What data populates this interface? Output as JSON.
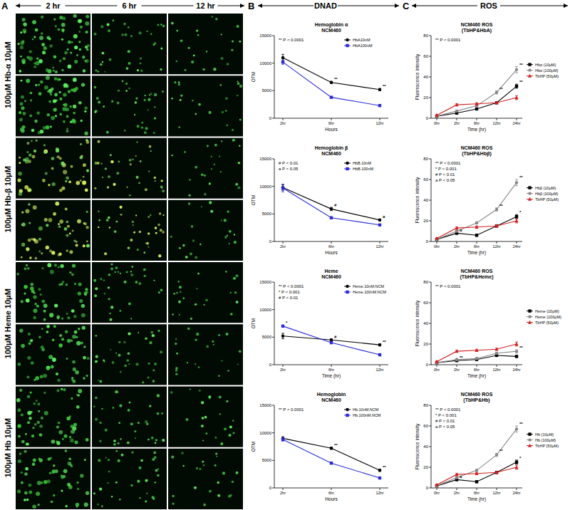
{
  "panel_a": {
    "label": "A",
    "columns": [
      "2 hr",
      "6 hr",
      "12 hr"
    ],
    "row_groups": [
      "100μM Hb-α 10μM",
      "100μM Hb-β 10μM",
      "100μM Heme 10μM",
      "100μM Hb 10μM"
    ]
  },
  "panel_b": {
    "label": "B",
    "title": "DNAD"
  },
  "panel_c": {
    "label": "C",
    "title": "ROS"
  },
  "chart_data": [
    {
      "type": "line",
      "title": "Hemoglobin α",
      "subtitle": "NCM460",
      "x_label": "Hours",
      "y_label": "OTM",
      "categories": [
        "2hr",
        "6hr",
        "12hr"
      ],
      "ylim": [
        0,
        15000
      ],
      "yticks": [
        0,
        5000,
        10000,
        15000
      ],
      "legend": "upper right",
      "annotations": [
        "** P < 0.0001"
      ],
      "series": [
        {
          "name": "HbA10nM",
          "color": "#000000",
          "marker": "circle",
          "values": [
            11000,
            6500,
            5200
          ],
          "errors": [
            600,
            200,
            200
          ]
        },
        {
          "name": "HbA100nM",
          "color": "#2b2bd6",
          "marker": "square",
          "values": [
            10200,
            3800,
            2300
          ],
          "errors": [
            400,
            150,
            150
          ]
        }
      ],
      "point_annotations": [
        {
          "series": 0,
          "index": 1,
          "text": "**"
        },
        {
          "series": 0,
          "index": 2,
          "text": "**"
        }
      ]
    },
    {
      "type": "line",
      "title": "Hemoglobin β",
      "subtitle": "NCM460",
      "x_label": "Hours",
      "y_label": "OTM",
      "categories": [
        "2hr",
        "6hr",
        "12hr"
      ],
      "ylim": [
        0,
        15000
      ],
      "yticks": [
        0,
        5000,
        10000,
        15000
      ],
      "legend": "upper right",
      "annotations": [
        "# P < 0.01",
        "a P < 0.05"
      ],
      "series": [
        {
          "name": "HbB.10nM",
          "color": "#000000",
          "marker": "circle",
          "values": [
            9800,
            5900,
            3900
          ],
          "errors": [
            500,
            300,
            200
          ]
        },
        {
          "name": "HbB.100nM",
          "color": "#2b2bd6",
          "marker": "square",
          "values": [
            9700,
            4300,
            3000
          ],
          "errors": [
            700,
            150,
            150
          ]
        }
      ],
      "point_annotations": [
        {
          "series": 0,
          "index": 1,
          "text": "#"
        },
        {
          "series": 0,
          "index": 2,
          "text": "a"
        }
      ]
    },
    {
      "type": "line",
      "title": "Heme",
      "subtitle": "NCM460",
      "x_label": "Time (hr)",
      "y_label": "OTM",
      "categories": [
        "2hr",
        "6hr",
        "12hr"
      ],
      "ylim": [
        0,
        15000
      ],
      "yticks": [
        0,
        5000,
        10000,
        15000
      ],
      "legend": "upper right",
      "annotations": [
        "** P < 0.0001",
        "* P < 0.001",
        "# P < 0.01"
      ],
      "series": [
        {
          "name": "Heme.10nM.NCM",
          "color": "#000000",
          "marker": "circle",
          "values": [
            5200,
            4500,
            3600
          ],
          "errors": [
            500,
            200,
            200
          ]
        },
        {
          "name": "Heme.100nM.NCM",
          "color": "#2b2bd6",
          "marker": "square",
          "values": [
            7000,
            4000,
            1800
          ],
          "errors": [
            200,
            150,
            100
          ]
        }
      ],
      "point_annotations": [
        {
          "series": 1,
          "index": 0,
          "text": "*"
        },
        {
          "series": 0,
          "index": 1,
          "text": "#"
        },
        {
          "series": 0,
          "index": 2,
          "text": "**"
        }
      ]
    },
    {
      "type": "line",
      "title": "Hemoglobin",
      "subtitle": "NCM460",
      "x_label": "Hours",
      "y_label": "OTM",
      "categories": [
        "2hr",
        "6hr",
        "12hr"
      ],
      "ylim": [
        0,
        15000
      ],
      "yticks": [
        0,
        5000,
        10000,
        15000
      ],
      "legend": "upper right",
      "annotations": [
        "** P < 0.0001"
      ],
      "series": [
        {
          "name": "Hb.10nM.NCM",
          "color": "#000000",
          "marker": "circle",
          "values": [
            9000,
            7200,
            3200
          ],
          "errors": [
            300,
            200,
            200
          ]
        },
        {
          "name": "Hb.100nM.NCM",
          "color": "#2b2bd6",
          "marker": "square",
          "values": [
            8800,
            4500,
            1800
          ],
          "errors": [
            300,
            150,
            150
          ]
        }
      ],
      "point_annotations": [
        {
          "series": 0,
          "index": 1,
          "text": "**"
        },
        {
          "series": 0,
          "index": 2,
          "text": "**"
        }
      ]
    },
    {
      "type": "line",
      "title": "NCM460 ROS",
      "subtitle": "(TbHP&HbA)",
      "x_label": "Time (hr)",
      "y_label": "Fluorescence intensity",
      "categories": [
        "0hr",
        "2hr",
        "6hr",
        "12hr",
        "24hr"
      ],
      "ylim": [
        0,
        80
      ],
      "yticks": [
        0,
        20,
        40,
        60,
        80
      ],
      "legend": "right",
      "annotations": [
        "** P < 0.0001"
      ],
      "series": [
        {
          "name": "Hbα (10μM)",
          "color": "#000000",
          "marker": "square",
          "values": [
            2,
            5,
            9,
            15,
            31
          ],
          "errors": [
            0.5,
            1,
            1,
            1,
            2
          ]
        },
        {
          "name": "Hbα (100μM)",
          "color": "#888888",
          "marker": "circle",
          "values": [
            2,
            7,
            12,
            25,
            47
          ],
          "errors": [
            0.5,
            1,
            1,
            1.5,
            3
          ]
        },
        {
          "name": "TbHP (50μM)",
          "color": "#d42020",
          "marker": "triangle",
          "values": [
            3,
            13,
            14,
            15,
            20
          ],
          "errors": [
            0.5,
            1,
            1,
            1,
            2
          ]
        }
      ],
      "point_annotations": [
        {
          "series": 1,
          "index": 3,
          "text": "**"
        },
        {
          "series": 1,
          "index": 4,
          "text": "**"
        },
        {
          "series": 0,
          "index": 4,
          "text": "**"
        }
      ]
    },
    {
      "type": "line",
      "title": "NCM460 ROS",
      "subtitle": "(TbHP&Hbβ)",
      "x_label": "Time (hr)",
      "y_label": "Fluorescence intensity",
      "categories": [
        "0hr",
        "2hr",
        "6hr",
        "12hr",
        "24hr"
      ],
      "ylim": [
        0,
        80
      ],
      "yticks": [
        0,
        20,
        40,
        60,
        80
      ],
      "legend": "right",
      "annotations": [
        "** P < 0.0001",
        "* P < 0.001",
        "# P < 0.01",
        "a P < 0.05"
      ],
      "series": [
        {
          "name": "Hbβ (10μM)",
          "color": "#000000",
          "marker": "square",
          "values": [
            2,
            8,
            6,
            15,
            24
          ],
          "errors": [
            0.5,
            1,
            1,
            1,
            2
          ]
        },
        {
          "name": "Hbβ (100μM)",
          "color": "#888888",
          "marker": "circle",
          "values": [
            2,
            10,
            18,
            31,
            57
          ],
          "errors": [
            0.5,
            1,
            1,
            1.5,
            3
          ]
        },
        {
          "name": "TbHP (50μM)",
          "color": "#d42020",
          "marker": "triangle",
          "values": [
            3,
            13,
            14,
            15,
            20
          ],
          "errors": [
            0.5,
            1,
            1,
            1,
            2
          ]
        }
      ],
      "point_annotations": [
        {
          "series": 1,
          "index": 3,
          "text": "**"
        },
        {
          "series": 1,
          "index": 4,
          "text": "**"
        },
        {
          "series": 0,
          "index": 4,
          "text": "*"
        },
        {
          "series": 0,
          "index": 1,
          "text": "a"
        }
      ]
    },
    {
      "type": "line",
      "title": "NCM460 ROS",
      "subtitle": "(TbHP&Heme)",
      "x_label": "Time (hr)",
      "y_label": "Fluorescence intensity",
      "categories": [
        "0hr",
        "2hr",
        "6hr",
        "12hr",
        "24hr"
      ],
      "ylim": [
        0,
        80
      ],
      "yticks": [
        0,
        20,
        40,
        60,
        80
      ],
      "legend": "right",
      "annotations": [
        "** P < 0.0001"
      ],
      "series": [
        {
          "name": "Heme (10μM)",
          "color": "#000000",
          "marker": "square",
          "values": [
            2,
            4,
            5,
            9,
            8
          ],
          "errors": [
            0.5,
            1,
            1,
            1,
            1
          ]
        },
        {
          "name": "Heme (100μM)",
          "color": "#888888",
          "marker": "circle",
          "values": [
            2,
            5,
            6,
            11,
            13
          ],
          "errors": [
            0.5,
            1,
            1,
            1,
            1.5
          ]
        },
        {
          "name": "TbHP (50μM)",
          "color": "#d42020",
          "marker": "triangle",
          "values": [
            3,
            13,
            14,
            15,
            20
          ],
          "errors": [
            0.5,
            1,
            1,
            1,
            2
          ]
        }
      ],
      "point_annotations": [
        {
          "series": 0,
          "index": 1,
          "text": "**"
        },
        {
          "series": 1,
          "index": 4,
          "text": "**"
        }
      ]
    },
    {
      "type": "line",
      "title": "NCM460 ROS",
      "subtitle": "(TbHP&Hb)",
      "x_label": "Time (hr)",
      "y_label": "Fluorescence intensity",
      "categories": [
        "0hr",
        "2hr",
        "6hr",
        "12hr",
        "24hr"
      ],
      "ylim": [
        0,
        80
      ],
      "yticks": [
        0,
        20,
        40,
        60,
        80
      ],
      "legend": "right",
      "annotations": [
        "** P < 0.0001",
        "* P < 0.001",
        "# P < 0.01",
        "a P < 0.05"
      ],
      "series": [
        {
          "name": "Hb (10μM)",
          "color": "#000000",
          "marker": "square",
          "values": [
            2,
            8,
            6,
            15,
            25
          ],
          "errors": [
            0.5,
            1,
            1,
            1,
            2
          ]
        },
        {
          "name": "Hb (100μM)",
          "color": "#888888",
          "marker": "circle",
          "values": [
            2,
            10,
            17,
            32,
            57
          ],
          "errors": [
            0.5,
            1,
            1,
            1.5,
            3
          ]
        },
        {
          "name": "TbHP (50μM)",
          "color": "#d42020",
          "marker": "triangle",
          "values": [
            3,
            13,
            14,
            15,
            20
          ],
          "errors": [
            0.5,
            1,
            1,
            1,
            2
          ]
        }
      ],
      "point_annotations": [
        {
          "series": 1,
          "index": 3,
          "text": "**"
        },
        {
          "series": 1,
          "index": 4,
          "text": "**"
        },
        {
          "series": 0,
          "index": 4,
          "text": "*"
        },
        {
          "series": 0,
          "index": 1,
          "text": "a"
        }
      ]
    }
  ]
}
